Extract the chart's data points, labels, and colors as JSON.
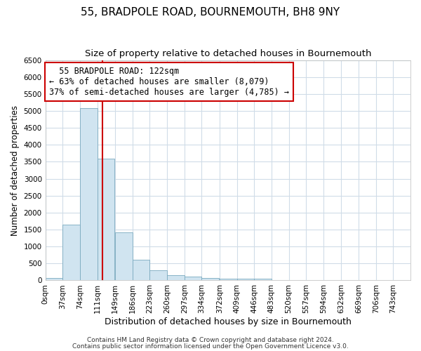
{
  "title": "55, BRADPOLE ROAD, BOURNEMOUTH, BH8 9NY",
  "subtitle": "Size of property relative to detached houses in Bournemouth",
  "xlabel": "Distribution of detached houses by size in Bournemouth",
  "ylabel": "Number of detached properties",
  "annotation_title": "55 BRADPOLE ROAD: 122sqm",
  "annotation_line1": "← 63% of detached houses are smaller (8,079)",
  "annotation_line2": "37% of semi-detached houses are larger (4,785) →",
  "bar_color": "#d0e4f0",
  "bar_edge_color": "#7aaabf",
  "ref_line_color": "#cc0000",
  "ref_line_x": 122,
  "background_color": "#ffffff",
  "plot_bg_color": "#ffffff",
  "grid_color": "#d0dce8",
  "categories": [
    0,
    37,
    74,
    111,
    149,
    186,
    223,
    260,
    297,
    334,
    372,
    409,
    446,
    483,
    520,
    557,
    594,
    632,
    669,
    706,
    743
  ],
  "bin_width": 37,
  "values": [
    75,
    1650,
    5080,
    3590,
    1410,
    610,
    305,
    155,
    120,
    78,
    52,
    50,
    50,
    0,
    0,
    0,
    0,
    0,
    0,
    0
  ],
  "ylim": [
    0,
    6500
  ],
  "footer1": "Contains HM Land Registry data © Crown copyright and database right 2024.",
  "footer2": "Contains public sector information licensed under the Open Government Licence v3.0.",
  "title_fontsize": 11,
  "subtitle_fontsize": 9.5,
  "xlabel_fontsize": 9,
  "ylabel_fontsize": 8.5,
  "tick_fontsize": 7.5,
  "footer_fontsize": 6.5,
  "annot_fontsize": 8.5
}
